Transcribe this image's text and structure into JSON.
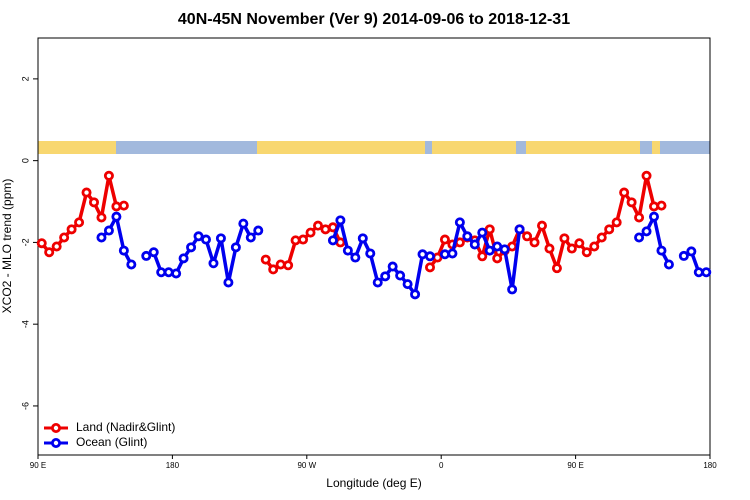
{
  "chart_data": {
    "type": "line",
    "title": "40N-45N November (Ver 9)   2014-09-06 to 2018-12-31",
    "x_label": "Longitude (deg E)",
    "y_label": "XCO2 - MLO trend (ppm)",
    "xlim": [
      90,
      540
    ],
    "xticks": [
      {
        "value": 90,
        "label": "90 E"
      },
      180,
      {
        "value": 270,
        "label": "90 W"
      },
      {
        "value": 360,
        "label": "0"
      },
      {
        "value": 450,
        "label": "90 E"
      },
      {
        "value": 540,
        "label": "180"
      }
    ],
    "ylim": [
      -7.2,
      3
    ],
    "yticks": [
      -6,
      -4,
      -2,
      0,
      2
    ],
    "legend": "bottom-left",
    "x": [
      92.5,
      97.5,
      102.5,
      107.5,
      112.5,
      117.5,
      122.5,
      127.5,
      132.5,
      137.5,
      142.5,
      147.5,
      152.5,
      157.5,
      162.5,
      167.5,
      172.5,
      177.5,
      182.5,
      187.5,
      192.5,
      197.5,
      202.5,
      207.5,
      212.5,
      217.5,
      222.5,
      227.5,
      232.5,
      237.5,
      242.5,
      247.5,
      252.5,
      257.5,
      262.5,
      267.5,
      272.5,
      277.5,
      282.5,
      287.5,
      292.5,
      297.5,
      302.5,
      307.5,
      312.5,
      317.5,
      322.5,
      327.5,
      332.5,
      337.5,
      342.5,
      347.5,
      352.5,
      357.5,
      362.5,
      367.5,
      372.5,
      377.5,
      382.5,
      387.5,
      392.5,
      397.5,
      402.5,
      407.5,
      412.5,
      417.5,
      422.5,
      427.5,
      432.5,
      437.5,
      442.5,
      447.5,
      452.5,
      457.5,
      462.5,
      467.5,
      472.5,
      477.5,
      482.5,
      487.5,
      492.5,
      497.5,
      502.5,
      507.5,
      512.5,
      517.5,
      522.5,
      527.5,
      532.5,
      537.5
    ],
    "series": [
      {
        "name": "Land (Nadir&Glint)",
        "color": "#ee0000",
        "values": [
          -2.02,
          -2.24,
          -2.1,
          -1.88,
          -1.68,
          -1.51,
          -0.78,
          -1.02,
          -1.39,
          -0.37,
          -1.12,
          -1.1,
          null,
          null,
          null,
          null,
          null,
          null,
          null,
          null,
          null,
          null,
          null,
          null,
          null,
          null,
          null,
          null,
          null,
          null,
          -2.42,
          -2.66,
          -2.54,
          -2.56,
          -1.95,
          -1.93,
          -1.76,
          -1.59,
          -1.68,
          -1.63,
          -2.0,
          null,
          null,
          null,
          null,
          null,
          null,
          null,
          null,
          null,
          null,
          null,
          -2.61,
          -2.37,
          -1.93,
          -2.05,
          -2.0,
          -1.88,
          -1.95,
          -2.34,
          -1.68,
          -2.39,
          -2.2,
          -2.1,
          -1.68,
          -1.85,
          -2.0,
          -1.59,
          -2.15,
          -2.63,
          -1.9,
          -2.15,
          -2.02,
          -2.24,
          -2.1,
          -1.88,
          -1.68,
          -1.51,
          -0.78,
          -1.02,
          -1.39,
          -0.37,
          -1.12,
          -1.1,
          null,
          null,
          null,
          null,
          null,
          null
        ]
      },
      {
        "name": "Ocean (Glint)",
        "color": "#0000ee",
        "values": [
          null,
          null,
          null,
          null,
          null,
          null,
          null,
          null,
          -1.88,
          -1.71,
          -1.37,
          -2.2,
          -2.54,
          null,
          -2.33,
          -2.24,
          -2.73,
          -2.73,
          -2.76,
          -2.39,
          -2.12,
          -1.85,
          -1.93,
          -2.51,
          -1.9,
          -2.98,
          -2.12,
          -1.54,
          -1.88,
          -1.71,
          null,
          null,
          null,
          null,
          null,
          null,
          null,
          null,
          null,
          -1.95,
          -1.46,
          -2.2,
          -2.37,
          -1.9,
          -2.27,
          -2.98,
          -2.83,
          -2.59,
          -2.81,
          -3.02,
          -3.27,
          -2.29,
          -2.34,
          null,
          -2.29,
          -2.27,
          -1.51,
          -1.85,
          -2.05,
          -1.76,
          -2.2,
          -2.1,
          -2.17,
          -3.15,
          -1.68,
          null,
          null,
          null,
          null,
          null,
          null,
          null,
          null,
          null,
          null,
          null,
          null,
          null,
          null,
          null,
          -1.88,
          -1.73,
          -1.37,
          -2.2,
          -2.54,
          null,
          -2.33,
          -2.22,
          -2.73,
          -2.73
        ]
      }
    ]
  }
}
